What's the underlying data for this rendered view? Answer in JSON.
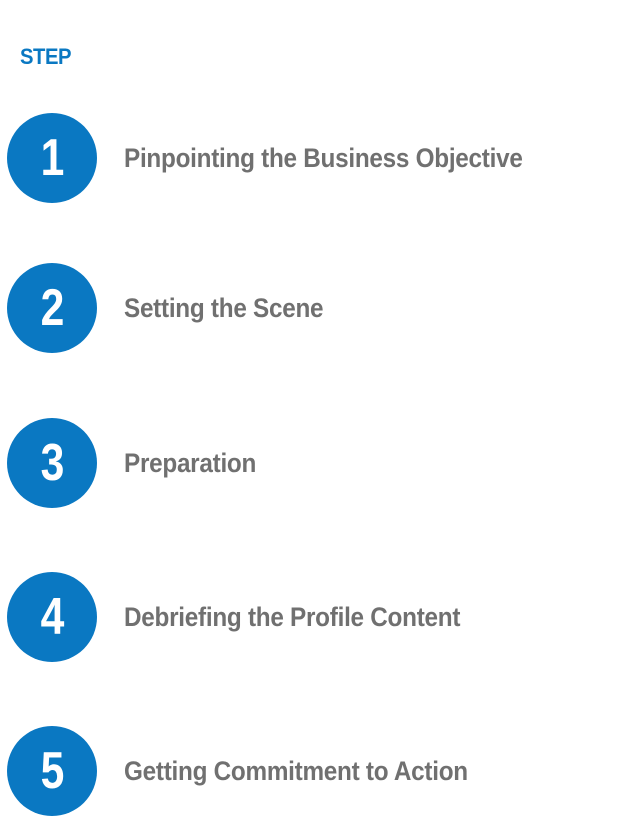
{
  "header": {
    "label": "STEP"
  },
  "steps": [
    {
      "number": "1",
      "label": "Pinpointing the Business Objective"
    },
    {
      "number": "2",
      "label": "Setting the Scene"
    },
    {
      "number": "3",
      "label": "Preparation"
    },
    {
      "number": "4",
      "label": "Debriefing the Profile Content"
    },
    {
      "number": "5",
      "label": "Getting Commitment to Action"
    }
  ],
  "colors": {
    "accent": "#0a78c2",
    "label_text": "#707070",
    "number_text": "#ffffff",
    "background": "#ffffff"
  }
}
